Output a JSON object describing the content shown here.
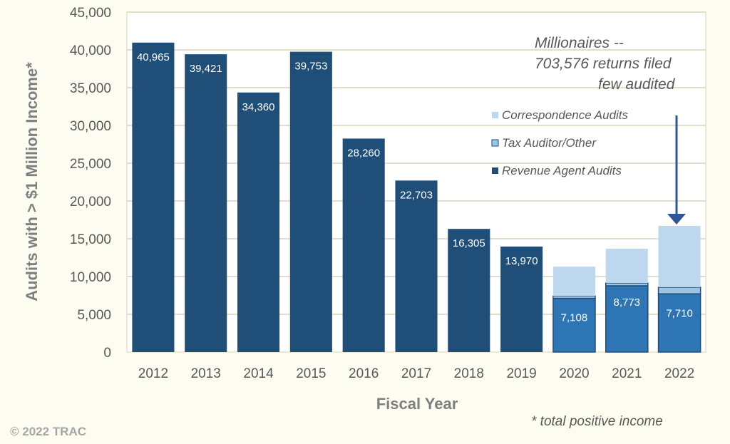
{
  "chart_data": {
    "type": "bar",
    "stacked": true,
    "categories": [
      "2012",
      "2013",
      "2014",
      "2015",
      "2016",
      "2017",
      "2018",
      "2019",
      "2020",
      "2021",
      "2022"
    ],
    "series": [
      {
        "name": "Revenue Agent Audits",
        "values": [
          40965,
          39421,
          34360,
          39753,
          28260,
          22703,
          16305,
          13970,
          7108,
          8773,
          7710
        ],
        "color": "#1f4e79",
        "color_recent": "#2e75b6"
      },
      {
        "name": "Tax Auditor/Other",
        "values": [
          0,
          0,
          0,
          0,
          0,
          0,
          0,
          0,
          300,
          380,
          880
        ],
        "color": "#9dc3e6"
      },
      {
        "name": "Correspondence Audits",
        "values": [
          0,
          0,
          0,
          0,
          0,
          0,
          0,
          0,
          3900,
          4530,
          8110
        ],
        "color": "#bdd7ee"
      }
    ],
    "data_labels": [
      "40,965",
      "39,421",
      "34,360",
      "39,753",
      "28,260",
      "22,703",
      "16,305",
      "13,970",
      "7,108",
      "8,773",
      "7,710"
    ],
    "xlabel": "Fiscal Year",
    "ylabel": "Audits with > $1 Million Income*",
    "ylim": [
      0,
      45000
    ],
    "yticks": [
      0,
      5000,
      10000,
      15000,
      20000,
      25000,
      30000,
      35000,
      40000,
      45000
    ],
    "ytick_labels": [
      "0",
      "5,000",
      "10,000",
      "15,000",
      "20,000",
      "25,000",
      "30,000",
      "35,000",
      "40,000",
      "45,000"
    ],
    "grid": true,
    "legend_placement": "right",
    "legend_order": [
      "Correspondence Audits",
      "Tax Auditor/Other",
      "Revenue Agent Audits"
    ],
    "annotation": [
      "Millionaires --",
      "703,576 returns filed",
      "few  audited"
    ],
    "footnote": "*  total positive income",
    "copyright": "© 2022 TRAC"
  }
}
